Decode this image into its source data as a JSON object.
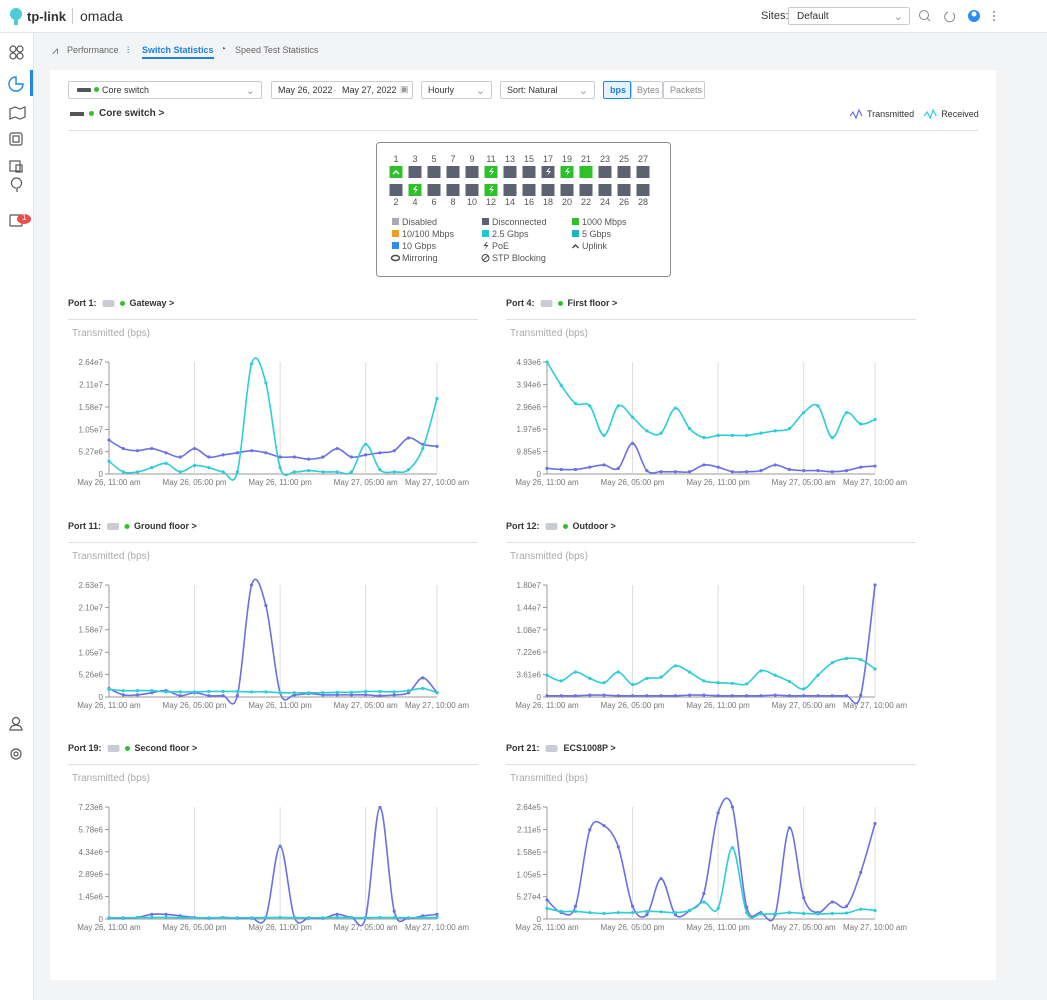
{
  "header": {
    "logo": "tp-link",
    "product": "omada",
    "sites_label": "Sites:",
    "site": "Default"
  },
  "notification_badge": "1",
  "tabs": [
    "Performance",
    "Switch Statistics",
    "Speed Test Statistics"
  ],
  "filters": {
    "device": "Core switch",
    "date_start": "May 26, 2022",
    "date_separator": "-",
    "date_end": "May 27, 2022",
    "interval": "Hourly",
    "sort": "Sort: Natural",
    "units": [
      "bps",
      "Bytes",
      "Packets"
    ]
  },
  "device_title": "Core switch >",
  "legend": [
    {
      "name": "Transmitted",
      "color": "#6b70e3"
    },
    {
      "name": "Received",
      "color": "#2bcdd9"
    }
  ],
  "ports": {
    "top": [
      {
        "label": "1",
        "color": "#2ec22a",
        "icon": "uplink"
      },
      {
        "label": "3",
        "color": "#5d6272"
      },
      {
        "label": "5",
        "color": "#5d6272"
      },
      {
        "label": "7",
        "color": "#5d6272"
      },
      {
        "label": "9",
        "color": "#5d6272"
      },
      {
        "label": "11",
        "color": "#2ec22a",
        "icon": "poe"
      },
      {
        "label": "13",
        "color": "#5d6272"
      },
      {
        "label": "15",
        "color": "#5d6272"
      },
      {
        "label": "17",
        "color": "#5d6272",
        "icon": "poe"
      },
      {
        "label": "19",
        "color": "#2ec22a",
        "icon": "poe"
      },
      {
        "label": "21",
        "color": "#2ec22a"
      },
      {
        "label": "23",
        "color": "#5d6272"
      },
      {
        "label": "25",
        "color": "#5d6272"
      },
      {
        "label": "27",
        "color": "#5d6272"
      }
    ],
    "bottom": [
      {
        "label": "2",
        "color": "#5d6272"
      },
      {
        "label": "4",
        "color": "#2ec22a",
        "icon": "poe"
      },
      {
        "label": "6",
        "color": "#5d6272"
      },
      {
        "label": "8",
        "color": "#5d6272"
      },
      {
        "label": "10",
        "color": "#5d6272"
      },
      {
        "label": "12",
        "color": "#2ec22a",
        "icon": "poe"
      },
      {
        "label": "14",
        "color": "#5d6272"
      },
      {
        "label": "16",
        "color": "#5d6272"
      },
      {
        "label": "18",
        "color": "#5d6272"
      },
      {
        "label": "20",
        "color": "#5d6272"
      },
      {
        "label": "22",
        "color": "#5d6272"
      },
      {
        "label": "24",
        "color": "#5d6272"
      },
      {
        "label": "26",
        "color": "#5d6272"
      },
      {
        "label": "28",
        "color": "#5d6272"
      }
    ]
  },
  "port_legend": [
    {
      "label": "Disabled",
      "color": "#a9abb1"
    },
    {
      "label": "Disconnected",
      "color": "#5d6272"
    },
    {
      "label": "1000 Mbps",
      "color": "#2ec22a"
    },
    {
      "label": "10/100 Mbps",
      "color": "#f59a23"
    },
    {
      "label": "2.5 Gbps",
      "color": "#1fc6d6"
    },
    {
      "label": "5 Gbps",
      "color": "#16b6c8"
    },
    {
      "label": "10 Gbps",
      "color": "#2d8cf0"
    },
    {
      "label": "PoE",
      "icon": "poe"
    },
    {
      "label": "Uplink",
      "icon": "uplink"
    },
    {
      "label": "Mirroring",
      "icon": "mirroring"
    },
    {
      "label": "STP Blocking",
      "icon": "stp"
    }
  ],
  "time_axis": [
    "May 26, 11:00 am",
    null,
    null,
    null,
    null,
    null,
    "May 26, 05:00 pm",
    null,
    null,
    null,
    null,
    null,
    "May 26, 11:00 pm",
    null,
    null,
    null,
    null,
    null,
    "May 27, 05:00 am",
    null,
    null,
    null,
    null,
    "May 27, 10:00 am"
  ],
  "charts": [
    {
      "type": "line",
      "port": "Port 1:",
      "device": "Gateway >",
      "dot_color": "#2ec22a",
      "ylabel": "Transmitted (bps)",
      "ylim": [
        0,
        26400000
      ],
      "yticks": [
        0,
        {
          "value": 5270000,
          "label": "5.27e6"
        },
        {
          "value": 10500000,
          "label": "1.05e7"
        },
        {
          "value": 15800000,
          "label": "1.58e7"
        },
        {
          "value": 21100000,
          "label": "2.11e7"
        },
        {
          "value": 26400000,
          "label": "2.64e7"
        }
      ],
      "series": [
        {
          "color": "#6b70e3",
          "values": [
            8000000,
            6000000,
            5500000,
            6000000,
            5000000,
            4000000,
            6000000,
            4000000,
            4500000,
            5000000,
            5500000,
            5000000,
            4000000,
            4000000,
            3500000,
            4000000,
            6000000,
            4000000,
            4500000,
            5000000,
            5500000,
            8500000,
            7000000,
            6500000
          ]
        },
        {
          "color": "#2bcdd9",
          "values": [
            3000000,
            500000,
            500000,
            1500000,
            2500000,
            500000,
            2000000,
            1500000,
            500000,
            500000,
            26000000,
            21500000,
            1500000,
            500000,
            800000,
            500000,
            500000,
            500000,
            7000000,
            1000000,
            500000,
            1000000,
            6000000,
            17800000
          ]
        }
      ]
    },
    {
      "type": "line",
      "port": "Port 4:",
      "device": "First floor >",
      "dot_color": "#2ec22a",
      "ylabel": "Transmitted (bps)",
      "ylim": [
        0,
        4930000
      ],
      "yticks": [
        0,
        {
          "value": 985000,
          "label": "9.85e5"
        },
        {
          "value": 1970000,
          "label": "1.97e6"
        },
        {
          "value": 2960000,
          "label": "2.96e6"
        },
        {
          "value": 3940000,
          "label": "3.94e6"
        },
        {
          "value": 4930000,
          "label": "4.93e6"
        }
      ],
      "series": [
        {
          "color": "#6b70e3",
          "values": [
            250000,
            200000,
            200000,
            300000,
            400000,
            250000,
            1350000,
            150000,
            100000,
            100000,
            100000,
            400000,
            300000,
            100000,
            100000,
            150000,
            400000,
            200000,
            150000,
            150000,
            100000,
            150000,
            300000,
            350000
          ]
        },
        {
          "color": "#2bcdd9",
          "values": [
            4930000,
            3900000,
            3100000,
            3000000,
            1700000,
            3000000,
            2500000,
            1900000,
            1800000,
            2900000,
            2000000,
            1600000,
            1700000,
            1700000,
            1700000,
            1800000,
            1900000,
            2000000,
            2700000,
            3000000,
            1600000,
            2700000,
            2200000,
            2400000
          ]
        }
      ]
    },
    {
      "type": "line",
      "port": "Port 11:",
      "device": "Ground floor >",
      "dot_color": "#2ec22a",
      "ylabel": "Transmitted (bps)",
      "ylim": [
        0,
        26300000
      ],
      "yticks": [
        0,
        {
          "value": 5260000,
          "label": "5.26e6"
        },
        {
          "value": 10500000,
          "label": "1.05e7"
        },
        {
          "value": 15800000,
          "label": "1.58e7"
        },
        {
          "value": 21000000,
          "label": "2.10e7"
        },
        {
          "value": 26300000,
          "label": "2.63e7"
        }
      ],
      "series": [
        {
          "color": "#6b70e3",
          "values": [
            2000000,
            500000,
            500000,
            1000000,
            1500000,
            300000,
            1000000,
            300000,
            300000,
            300000,
            26300000,
            21500000,
            1000000,
            500000,
            800000,
            500000,
            500000,
            500000,
            500000,
            300000,
            500000,
            1000000,
            4500000,
            1000000
          ]
        },
        {
          "color": "#2bcdd9",
          "values": [
            1800000,
            1500000,
            1500000,
            1500000,
            1200000,
            1200000,
            1200000,
            1300000,
            1300000,
            1300000,
            1200000,
            1200000,
            1000000,
            1000000,
            1000000,
            1000000,
            1100000,
            1100000,
            1300000,
            1300000,
            1200000,
            1500000,
            2000000,
            1000000
          ]
        }
      ]
    },
    {
      "type": "line",
      "port": "Port 12:",
      "device": "Outdoor >",
      "dot_color": "#2ec22a",
      "ylabel": "Transmitted (bps)",
      "ylim": [
        0,
        18000000
      ],
      "yticks": [
        0,
        {
          "value": 3610000,
          "label": "3.61e6"
        },
        {
          "value": 7220000,
          "label": "7.22e6"
        },
        {
          "value": 10800000,
          "label": "1.08e7"
        },
        {
          "value": 14400000,
          "label": "1.44e7"
        },
        {
          "value": 18000000,
          "label": "1.80e7"
        }
      ],
      "series": [
        {
          "color": "#6b70e3",
          "values": [
            200000,
            200000,
            200000,
            300000,
            300000,
            200000,
            200000,
            200000,
            200000,
            200000,
            300000,
            300000,
            200000,
            200000,
            200000,
            200000,
            300000,
            200000,
            200000,
            200000,
            200000,
            200000,
            300000,
            18000000
          ]
        },
        {
          "color": "#2bcdd9",
          "values": [
            3500000,
            2600000,
            4000000,
            3000000,
            2300000,
            4000000,
            2000000,
            3000000,
            3200000,
            5000000,
            4000000,
            2600000,
            2300000,
            2200000,
            2100000,
            4200000,
            3500000,
            2500000,
            1300000,
            3500000,
            5500000,
            6200000,
            6000000,
            4500000
          ]
        }
      ]
    },
    {
      "type": "line",
      "port": "Port 19:",
      "device": "Second floor >",
      "dot_color": "#2ec22a",
      "ylabel": "Transmitted (bps)",
      "ylim": [
        0,
        7230000
      ],
      "yticks": [
        0,
        {
          "value": 1450000,
          "label": "1.45e6"
        },
        {
          "value": 2890000,
          "label": "2.89e6"
        },
        {
          "value": 4340000,
          "label": "4.34e6"
        },
        {
          "value": 5780000,
          "label": "5.78e6"
        },
        {
          "value": 7230000,
          "label": "7.23e6"
        }
      ],
      "series": [
        {
          "color": "#6b70e3",
          "values": [
            50000,
            50000,
            100000,
            300000,
            300000,
            200000,
            100000,
            50000,
            100000,
            50000,
            50000,
            100000,
            4700000,
            100000,
            50000,
            50000,
            300000,
            100000,
            100000,
            7200000,
            500000,
            50000,
            200000,
            300000
          ]
        },
        {
          "color": "#2bcdd9",
          "values": [
            80000,
            80000,
            90000,
            100000,
            100000,
            90000,
            80000,
            80000,
            90000,
            80000,
            80000,
            90000,
            100000,
            90000,
            80000,
            80000,
            100000,
            90000,
            80000,
            100000,
            90000,
            80000,
            90000,
            100000
          ]
        }
      ]
    },
    {
      "type": "line",
      "port": "Port 21:",
      "device": "ECS1008P >",
      "dot_color": null,
      "ylabel": "Transmitted (bps)",
      "ylim": [
        0,
        264000
      ],
      "yticks": [
        0,
        {
          "value": 52700,
          "label": "5.27e4"
        },
        {
          "value": 105000,
          "label": "1.05e5"
        },
        {
          "value": 158000,
          "label": "1.58e5"
        },
        {
          "value": 211000,
          "label": "2.11e5"
        },
        {
          "value": 264000,
          "label": "2.64e5"
        }
      ],
      "series": [
        {
          "color": "#6b70e3",
          "values": [
            45000,
            15000,
            30000,
            210000,
            220000,
            170000,
            30000,
            10000,
            95000,
            10000,
            20000,
            60000,
            250000,
            264000,
            28000,
            15000,
            10000,
            215000,
            50000,
            15000,
            40000,
            30000,
            110000,
            225000
          ]
        },
        {
          "color": "#2bcdd9",
          "values": [
            25000,
            18000,
            18000,
            15000,
            13000,
            15000,
            15000,
            18000,
            17000,
            15000,
            20000,
            40000,
            25000,
            168000,
            15000,
            12000,
            12000,
            15000,
            13000,
            12000,
            13000,
            14000,
            23000,
            20000
          ]
        }
      ]
    }
  ]
}
